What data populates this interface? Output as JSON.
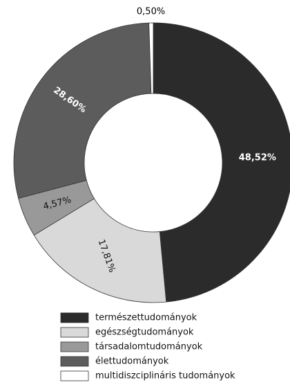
{
  "chart_data": {
    "type": "donut",
    "categories": [
      "természettudományok",
      "egészségtudományok",
      "társadalomtudományok",
      "élettudományok",
      "multidiszciplináris tudományok"
    ],
    "values": [
      48.52,
      17.81,
      4.57,
      28.6,
      0.5
    ],
    "value_labels": [
      "48,52%",
      "17,81%",
      "4,57%",
      "28,60%",
      "0,50%"
    ],
    "colors": [
      "#2b2b2b",
      "#d9d9d9",
      "#999999",
      "#5c5c5c",
      "#ffffff"
    ]
  }
}
